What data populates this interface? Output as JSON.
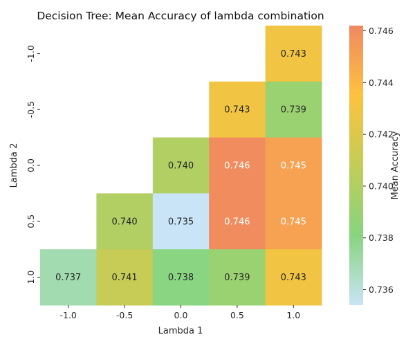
{
  "chart_data": {
    "type": "heatmap",
    "title": "Decision Tree: Mean Accuracy of lambda combination",
    "xlabel": "Lambda 1",
    "ylabel": "Lambda 2",
    "x_categories": [
      "-1.0",
      "-0.5",
      "0.0",
      "0.5",
      "1.0"
    ],
    "y_categories": [
      "-1.0",
      "-0.5",
      "0.0",
      "0.5",
      "1.0"
    ],
    "values": [
      [
        null,
        null,
        null,
        null,
        0.743
      ],
      [
        null,
        null,
        null,
        0.743,
        0.739
      ],
      [
        null,
        null,
        0.74,
        0.746,
        0.745
      ],
      [
        null,
        0.74,
        0.735,
        0.746,
        0.745
      ],
      [
        0.737,
        0.741,
        0.738,
        0.739,
        0.743
      ]
    ],
    "colorbar": {
      "label": "Mean Accuracy",
      "range": [
        0.7354,
        0.7462
      ],
      "ticks": [
        "0.736",
        "0.738",
        "0.740",
        "0.742",
        "0.744",
        "0.746"
      ],
      "tick_values": [
        0.736,
        0.738,
        0.74,
        0.742,
        0.744,
        0.746
      ],
      "colormap": [
        "#c9e4f7",
        "#87d47e",
        "#c2cd58",
        "#fdc23e",
        "#f08862"
      ]
    },
    "grid": false
  }
}
